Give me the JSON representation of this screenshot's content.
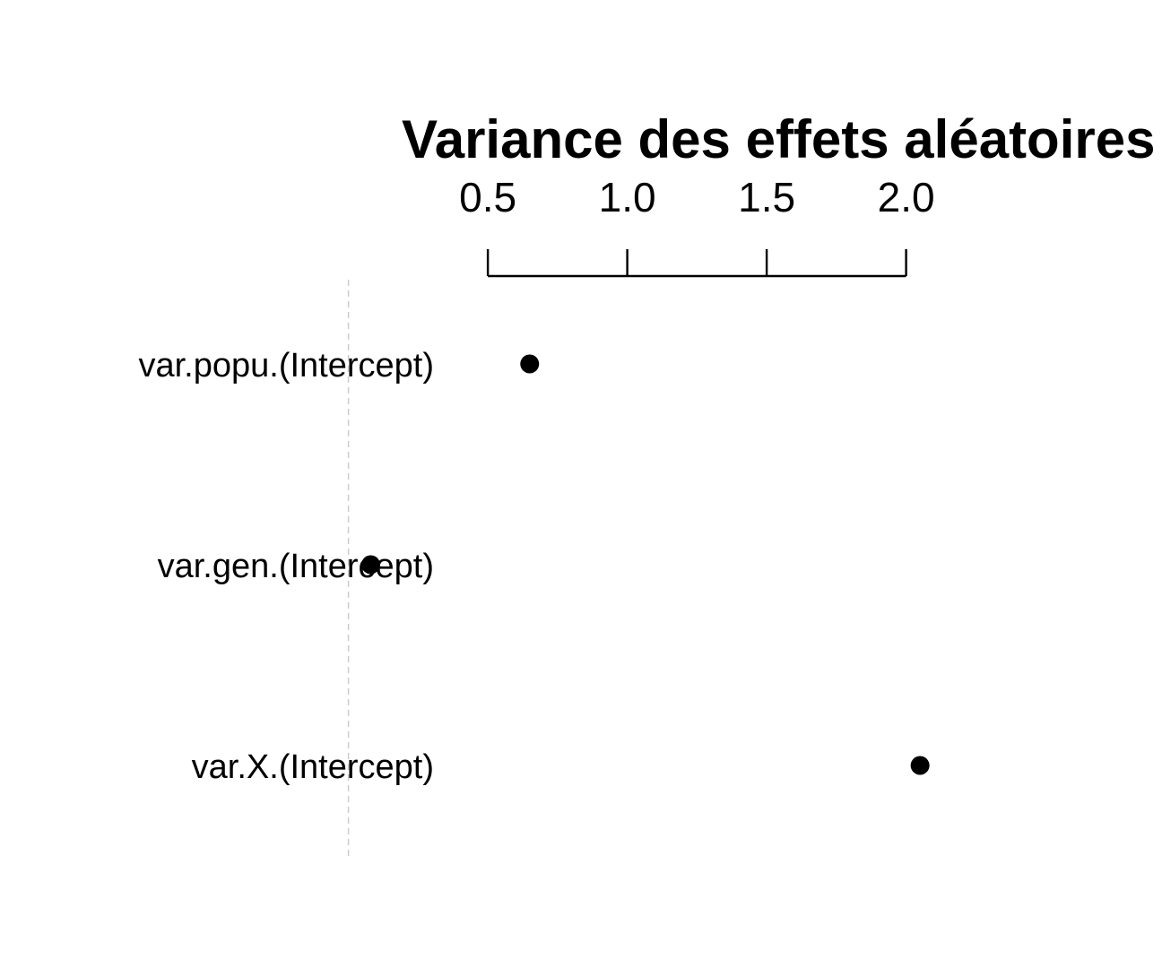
{
  "chart_data": {
    "type": "scatter",
    "title": "Variance des effets aléatoires",
    "xlabel": "",
    "ylabel": "",
    "categories": [
      "var.popu.(Intercept)",
      "var.gen.(Intercept)",
      "var.X.(Intercept)"
    ],
    "values": [
      0.65,
      0.08,
      2.05
    ],
    "xticks": [
      0.5,
      1.0,
      1.5,
      2.0
    ],
    "xtick_labels": [
      "0.5",
      "1.0",
      "1.5",
      "2.0"
    ],
    "xlim": [
      0.0,
      2.4
    ],
    "x_axis_position": "top",
    "reference_line_x": 0,
    "grid": false,
    "legend": "none",
    "colors": {
      "points": "#000000",
      "reference_line": "#cccccc"
    }
  }
}
